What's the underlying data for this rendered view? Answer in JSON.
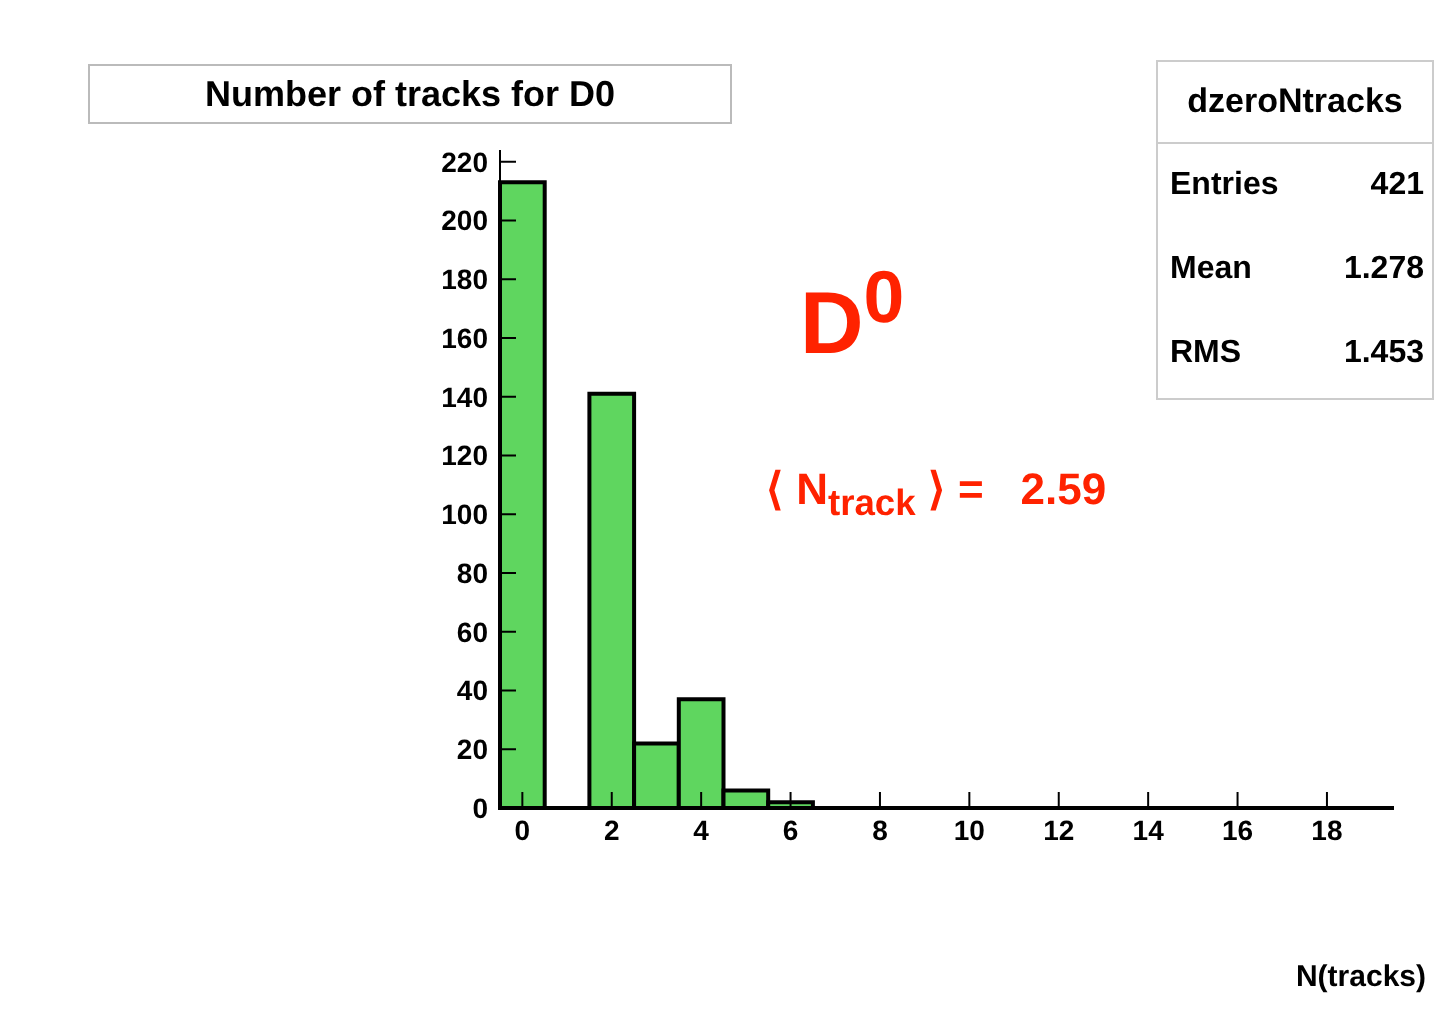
{
  "chart_data": {
    "type": "histogram",
    "title": "Number of tracks for D0",
    "xlabel": "N(tracks)",
    "bins": [
      -0.5,
      0.5,
      1.5,
      2.5,
      3.5,
      4.5,
      5.5,
      6.5,
      7.5,
      8.5,
      9.5,
      10.5,
      11.5,
      12.5,
      13.5,
      14.5,
      15.5,
      16.5,
      17.5,
      18.5,
      19.5
    ],
    "values": [
      213,
      0,
      141,
      22,
      37,
      6,
      2,
      0,
      0,
      0,
      0,
      0,
      0,
      0,
      0,
      0,
      0,
      0,
      0,
      0
    ],
    "color": "#5fd65f",
    "xlim": [
      -0.5,
      19.5
    ],
    "xticks": [
      0,
      2,
      4,
      6,
      8,
      10,
      12,
      14,
      16,
      18
    ],
    "ylim": [
      0,
      224
    ],
    "yticks": [
      0,
      20,
      40,
      60,
      80,
      100,
      120,
      140,
      160,
      180,
      200,
      220
    ],
    "grid": false,
    "annotations": [
      "D$^{0}$",
      "⟨ N$_{track}$ ⟩ =   2.59",
      "dzeroNtracks",
      "Entries",
      "421",
      "Mean",
      "1.278",
      "RMS",
      "1.453"
    ]
  }
}
